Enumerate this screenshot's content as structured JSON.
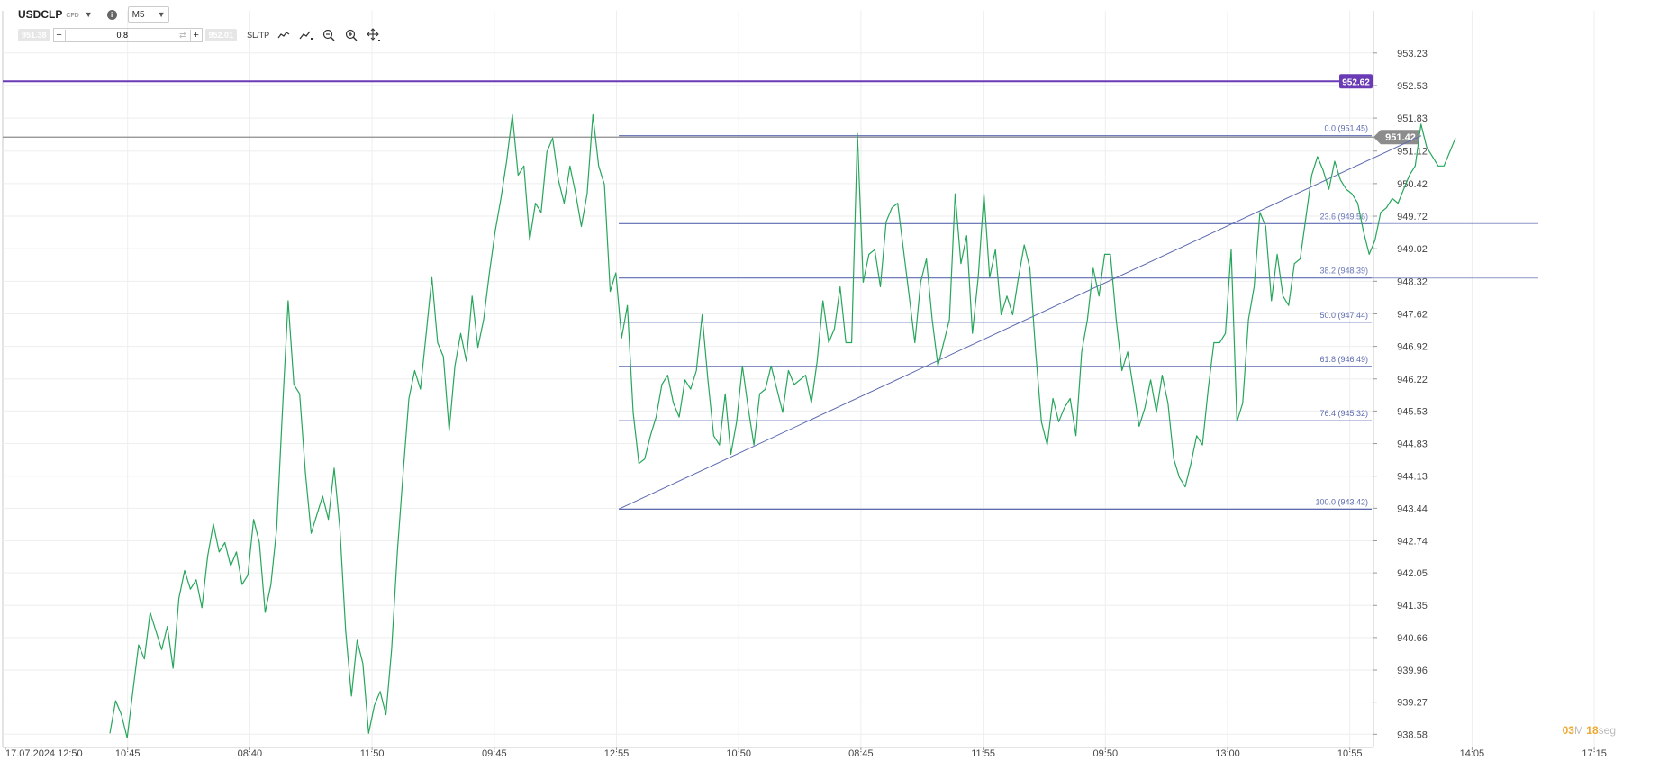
{
  "toolbar": {
    "symbol": "USDCLP",
    "symbol_badge": "CFD",
    "timeframe": "M5",
    "sell_price": "951.38",
    "volume": "0.8",
    "buy_price": "952.01",
    "sltp_label": "SL/TP"
  },
  "countdown": {
    "minutes": "03",
    "minutes_unit": "M",
    "seconds": "18",
    "seconds_unit": "seg"
  },
  "colors": {
    "series": "#26a65b",
    "fib": "#5d6ab0",
    "alert_line": "#6a3bb5",
    "current_price": "#8c8c8c",
    "box_border": "#1f7a4c"
  },
  "chart_data": {
    "type": "line",
    "symbol": "USDCLP",
    "timeframe": "M5",
    "ylim": [
      938.45,
      953.4
    ],
    "y_ticks": [
      "953.23",
      "952.53",
      "951.83",
      "951.12",
      "950.42",
      "949.72",
      "949.02",
      "948.32",
      "947.62",
      "946.92",
      "946.22",
      "945.53",
      "944.83",
      "944.13",
      "943.44",
      "942.74",
      "942.05",
      "941.35",
      "940.66",
      "939.96",
      "939.27",
      "938.58"
    ],
    "x_ticks": [
      "17.07.2024 12:50",
      "10:45",
      "08:40",
      "11:50",
      "09:45",
      "12:55",
      "10:50",
      "08:45",
      "11:55",
      "09:50",
      "13:00",
      "10:55",
      "14:05",
      "17:15"
    ],
    "price_series": [
      938.6,
      939.3,
      939.0,
      938.5,
      939.5,
      940.5,
      940.2,
      941.2,
      940.8,
      940.4,
      940.9,
      940.0,
      941.5,
      942.1,
      941.7,
      941.9,
      941.3,
      942.4,
      943.1,
      942.5,
      942.7,
      942.2,
      942.5,
      941.8,
      942.0,
      943.2,
      942.7,
      941.2,
      941.8,
      943.0,
      945.5,
      947.9,
      946.1,
      945.9,
      944.2,
      942.9,
      943.3,
      943.7,
      943.2,
      944.3,
      943.0,
      940.8,
      939.4,
      940.6,
      940.1,
      938.6,
      939.2,
      939.5,
      939.0,
      940.4,
      942.5,
      944.2,
      945.8,
      946.4,
      946.0,
      947.2,
      948.4,
      947.0,
      946.7,
      945.1,
      946.5,
      947.2,
      946.6,
      948.0,
      946.9,
      947.5,
      948.5,
      949.4,
      950.1,
      950.9,
      951.9,
      950.6,
      950.8,
      949.2,
      950.0,
      949.8,
      951.1,
      951.4,
      950.5,
      950.0,
      950.8,
      950.2,
      949.5,
      950.2,
      951.9,
      950.8,
      950.4,
      948.1,
      948.5,
      947.1,
      947.8,
      945.5,
      944.4,
      944.5,
      945.0,
      945.4,
      946.1,
      946.3,
      945.7,
      945.4,
      946.2,
      946.0,
      946.4,
      947.6,
      946.2,
      945.0,
      944.8,
      945.9,
      944.6,
      945.3,
      946.5,
      945.6,
      944.8,
      945.9,
      946.0,
      946.5,
      946.0,
      945.5,
      946.4,
      946.1,
      946.2,
      946.3,
      945.7,
      946.6,
      947.9,
      947.0,
      947.3,
      948.2,
      947.0,
      947.0,
      951.5,
      948.3,
      948.9,
      949.0,
      948.2,
      949.6,
      949.9,
      950.0,
      949.0,
      948.0,
      947.0,
      948.3,
      948.8,
      947.5,
      946.5,
      947.0,
      947.5,
      950.2,
      948.7,
      949.3,
      947.2,
      948.4,
      950.2,
      948.4,
      949.0,
      947.6,
      948.0,
      947.6,
      948.4,
      949.1,
      948.6,
      946.8,
      945.3,
      944.8,
      945.8,
      945.3,
      945.6,
      945.8,
      945.0,
      946.8,
      947.5,
      948.6,
      948.0,
      948.9,
      948.9,
      947.5,
      946.4,
      946.8,
      946.0,
      945.2,
      945.6,
      946.2,
      945.5,
      946.3,
      945.7,
      944.5,
      944.1,
      943.9,
      944.4,
      945.0,
      944.8,
      946.0,
      947.0,
      947.0,
      947.2,
      949.0,
      945.3,
      945.7,
      947.5,
      948.2,
      949.8,
      949.5,
      947.9,
      948.9,
      948.0,
      947.8,
      948.7,
      948.8,
      949.7,
      950.6,
      951.0,
      950.7,
      950.3,
      950.9,
      950.5,
      950.3,
      950.2,
      950.0,
      949.4,
      948.9,
      949.2,
      949.8,
      949.9,
      950.1,
      950.0,
      950.3,
      950.6,
      950.8,
      951.7,
      951.2,
      951.0,
      950.8,
      950.8,
      951.1,
      951.4
    ],
    "fibonacci": {
      "levels": [
        {
          "label": "0.0 (951.45)",
          "value": 951.45
        },
        {
          "label": "23.6 (949.56)",
          "value": 949.56
        },
        {
          "label": "38.2 (948.39)",
          "value": 948.39
        },
        {
          "label": "50.0 (947.44)",
          "value": 947.44
        },
        {
          "label": "61.8 (946.49)",
          "value": 946.49
        },
        {
          "label": "76.4 (945.32)",
          "value": 945.32
        },
        {
          "label": "100.0 (943.42)",
          "value": 943.42
        }
      ]
    },
    "alert_line": {
      "value": 952.62,
      "label": "952.62"
    },
    "current_price": {
      "value": 951.42,
      "label": "951.42"
    },
    "grid": true
  }
}
